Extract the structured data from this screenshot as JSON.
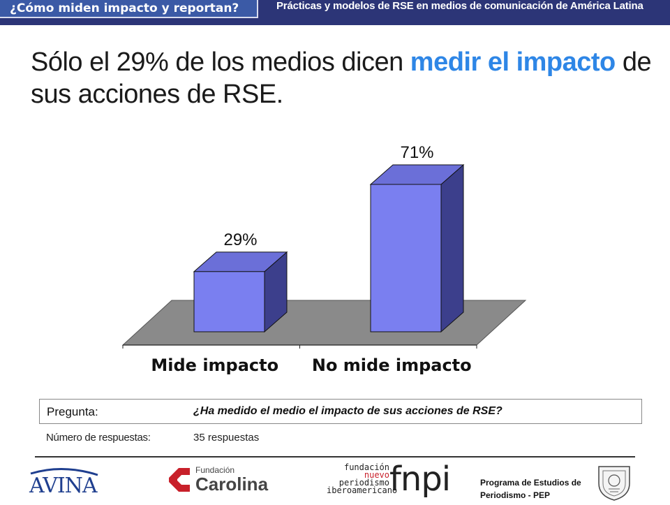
{
  "header": {
    "section_title": "¿Cómo miden impacto y reportan?",
    "subtitle": "Prácticas y modelos de RSE en medios de comunicación de América Latina"
  },
  "headline": {
    "part1": "Sólo el 29% de los medios dicen ",
    "highlight": "medir el impacto",
    "part2": " de sus acciones de RSE."
  },
  "chart_data": {
    "type": "bar",
    "categories": [
      "Mide impacto",
      "No mide impacto"
    ],
    "values": [
      29,
      71
    ],
    "value_labels": [
      "29%",
      "71%"
    ],
    "ylim": [
      0,
      100
    ],
    "style": "3d",
    "colors": {
      "bar_front": "#7a7ff0",
      "bar_side": "#3c3f8c",
      "bar_top": "#6b6fd8",
      "floor": "#8a8a8a"
    }
  },
  "question": {
    "label": "Pregunta:",
    "text": "¿Ha medido el medio el impacto de sus acciones de RSE?"
  },
  "responses": {
    "label": "Número de respuestas:",
    "text": "35 respuestas"
  },
  "footer": {
    "avina": "AVINA",
    "carolina_small": "Fundación",
    "carolina_big": "Carolina",
    "fnpi_lines": [
      "fundación",
      "nuevo",
      "periodismo",
      "iberoamericano"
    ],
    "fnpi_big": "fnpi",
    "pep_line1": "Programa de Estudios de",
    "pep_line2": "Periodismo - PEP"
  }
}
